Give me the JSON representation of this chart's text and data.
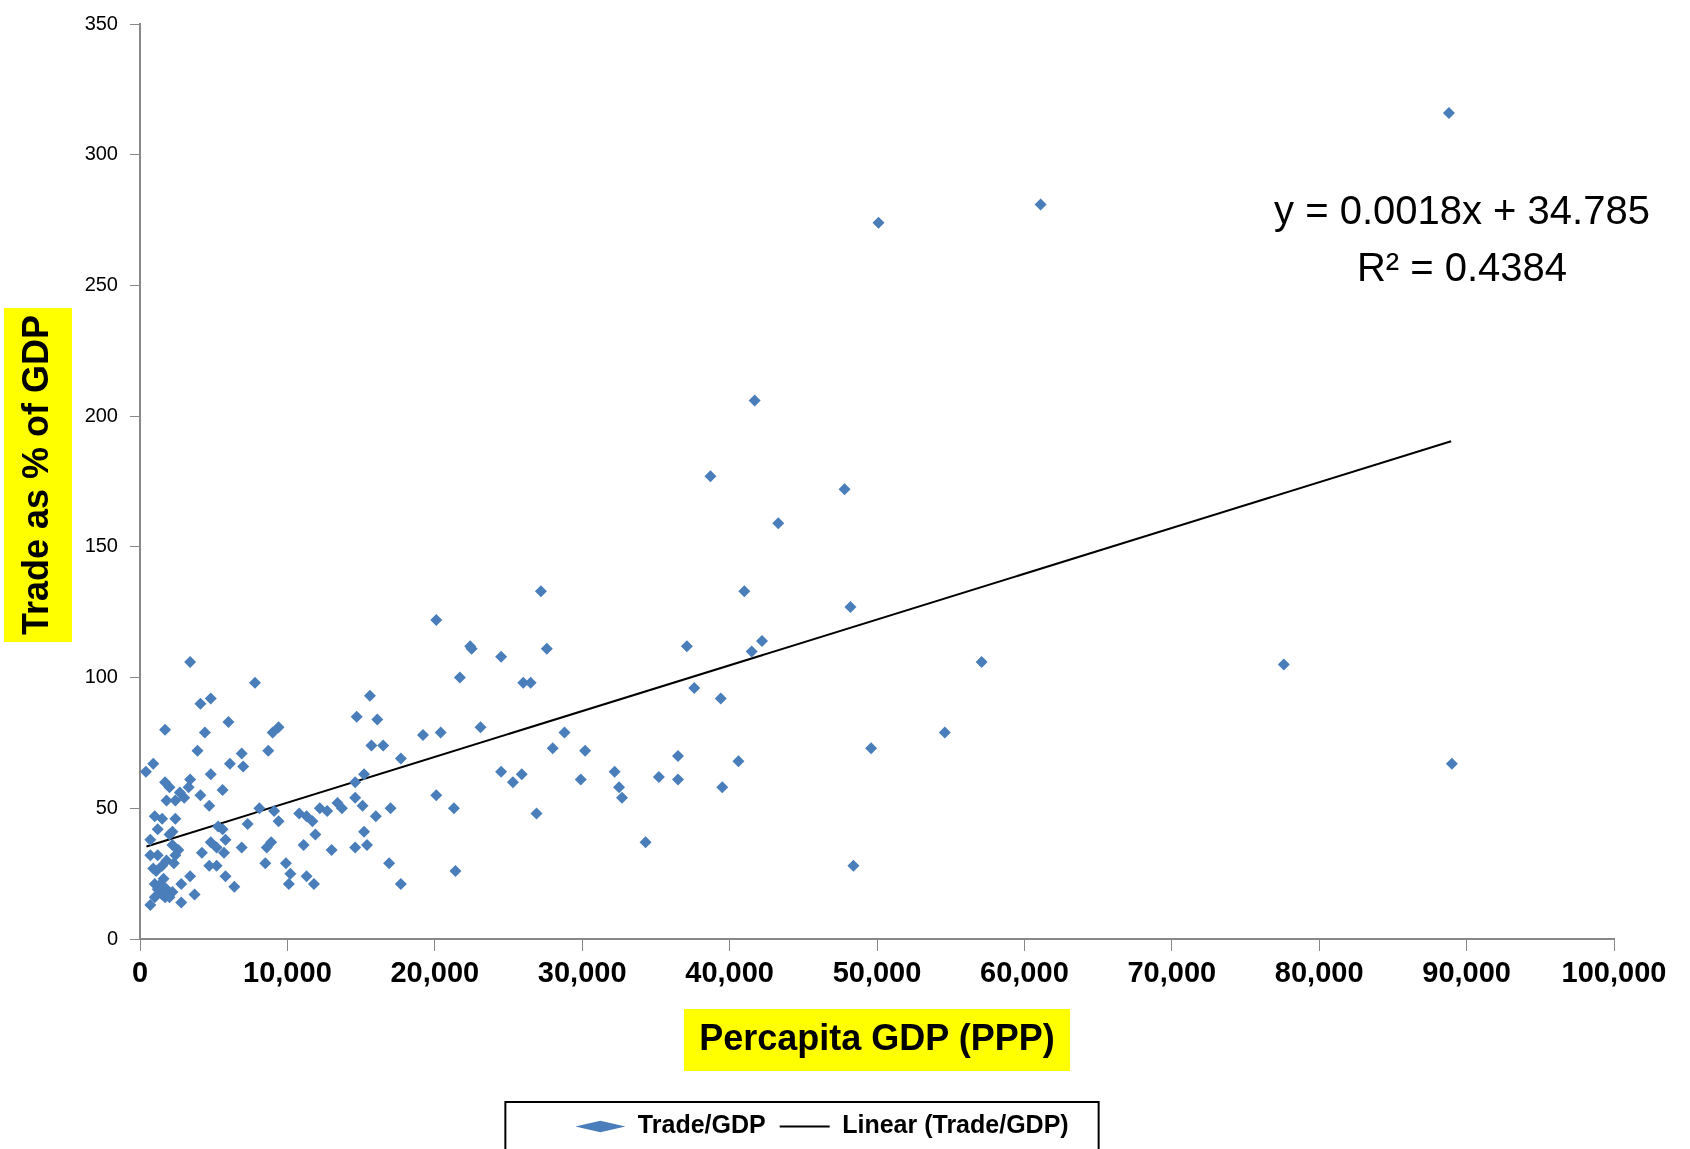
{
  "chart_data": {
    "type": "scatter",
    "xlabel": "Percapita GDP (PPP)",
    "ylabel": "Trade as % of GDP",
    "xlim": [
      0,
      100000
    ],
    "xticks": [
      {
        "value": 0,
        "label": "0"
      },
      {
        "value": 10000,
        "label": "10,000"
      },
      {
        "value": 20000,
        "label": "20,000"
      },
      {
        "value": 30000,
        "label": "30,000"
      },
      {
        "value": 40000,
        "label": "40,000"
      },
      {
        "value": 50000,
        "label": "50,000"
      },
      {
        "value": 60000,
        "label": "60,000"
      },
      {
        "value": 70000,
        "label": "70,000"
      },
      {
        "value": 80000,
        "label": "80,000"
      },
      {
        "value": 90000,
        "label": "90,000"
      },
      {
        "value": 100000,
        "label": "100,000"
      }
    ],
    "ylim": [
      0,
      350
    ],
    "yticks": [
      0,
      50,
      100,
      150,
      200,
      250,
      300,
      350
    ],
    "grid": false,
    "legend": "bottom",
    "annotations": [
      "y = 0.0018x + 34.785",
      "R² = 0.4384"
    ],
    "series": [
      {
        "name": "Trade/GDP",
        "type": "scatter",
        "marker": "diamond",
        "color": "#4a7ebb",
        "x": [
          88800,
          61100,
          50100,
          41700,
          38700,
          47800,
          43300,
          27200,
          41000,
          20100,
          48200,
          42200,
          41500,
          37100,
          27600,
          22500,
          22400,
          24500,
          3400,
          57100,
          77600,
          21700,
          26000,
          26500,
          7800,
          37600,
          15600,
          39400,
          4800,
          4100,
          14700,
          16100,
          6000,
          1700,
          23100,
          9400,
          9000,
          19200,
          20400,
          4400,
          54600,
          28800,
          15700,
          16500,
          49600,
          28000,
          3900,
          8700,
          30200,
          6900,
          36500,
          17700,
          40600,
          900,
          6100,
          7000,
          89000,
          400,
          24500,
          32200,
          4800,
          15200,
          25900,
          3400,
          1700,
          35200,
          36500,
          29900,
          25300,
          14600,
          2000,
          3300,
          32500,
          39500,
          5600,
          2700,
          3000,
          2400,
          4100,
          1800,
          32700,
          14600,
          4700,
          13400,
          15100,
          21300,
          17000,
          8100,
          12200,
          12700,
          13700,
          9100,
          20100,
          26900,
          16000,
          10800,
          11300,
          1000,
          1500,
          2400,
          9400,
          11700,
          5300,
          5600,
          7300,
          1200,
          2200,
          2000,
          15200,
          11900,
          5800,
          4800,
          5200,
          8900,
          700,
          8600,
          6900,
          15400,
          34300,
          2200,
          2600,
          4200,
          14600,
          13000,
          11100,
          5700,
          2400,
          2300,
          1200,
          700,
          16900,
          8500,
          9900,
          4700,
          48400,
          1500,
          1800,
          900,
          1100,
          10200,
          5200,
          21400,
          3400,
          5800,
          11300,
          1600,
          1000,
          1400,
          17700,
          10100,
          11800,
          6400,
          2800,
          1800,
          2200,
          1200,
          1500,
          3700,
          1000,
          1700,
          2000,
          2800,
          700
        ],
        "values": [
          316,
          281,
          274,
          206,
          177,
          172,
          159,
          133,
          133,
          122,
          127,
          114,
          110,
          112,
          111,
          111,
          112,
          108,
          106,
          106,
          105,
          100,
          98,
          98,
          98,
          96,
          93,
          92,
          92,
          90,
          85,
          84,
          83,
          80,
          81,
          81,
          79,
          78,
          79,
          79,
          79,
          79,
          74,
          74,
          73,
          73,
          72,
          72,
          72,
          71,
          70,
          69,
          68,
          67,
          67,
          66,
          67,
          64,
          64,
          64,
          63,
          63,
          63,
          61,
          60,
          62,
          61,
          61,
          60,
          60,
          58,
          58,
          58,
          58,
          57,
          56,
          54,
          53,
          55,
          53,
          54,
          54,
          51,
          52,
          51,
          50,
          50,
          50,
          50,
          49,
          50,
          49,
          55,
          48,
          47,
          48,
          47,
          47,
          46,
          46,
          45,
          45,
          43,
          42,
          44,
          42,
          41,
          40,
          41,
          40,
          38,
          37,
          35,
          37,
          38,
          35,
          35,
          36,
          37,
          36,
          34,
          33,
          35,
          34,
          36,
          33,
          32,
          29,
          32,
          32,
          29,
          29,
          29,
          28,
          28,
          28,
          30,
          27,
          26,
          25,
          28,
          26,
          24,
          24,
          24,
          23,
          21,
          21,
          21,
          21,
          21,
          20,
          21,
          19,
          18,
          19,
          17,
          17,
          16,
          16,
          16,
          14,
          13
        ]
      },
      {
        "name": "Linear (Trade/GDP)",
        "type": "line",
        "marker": "none",
        "color": "#000000",
        "x": [
          440,
          88950
        ],
        "values": [
          35.4,
          190.4
        ]
      }
    ]
  }
}
